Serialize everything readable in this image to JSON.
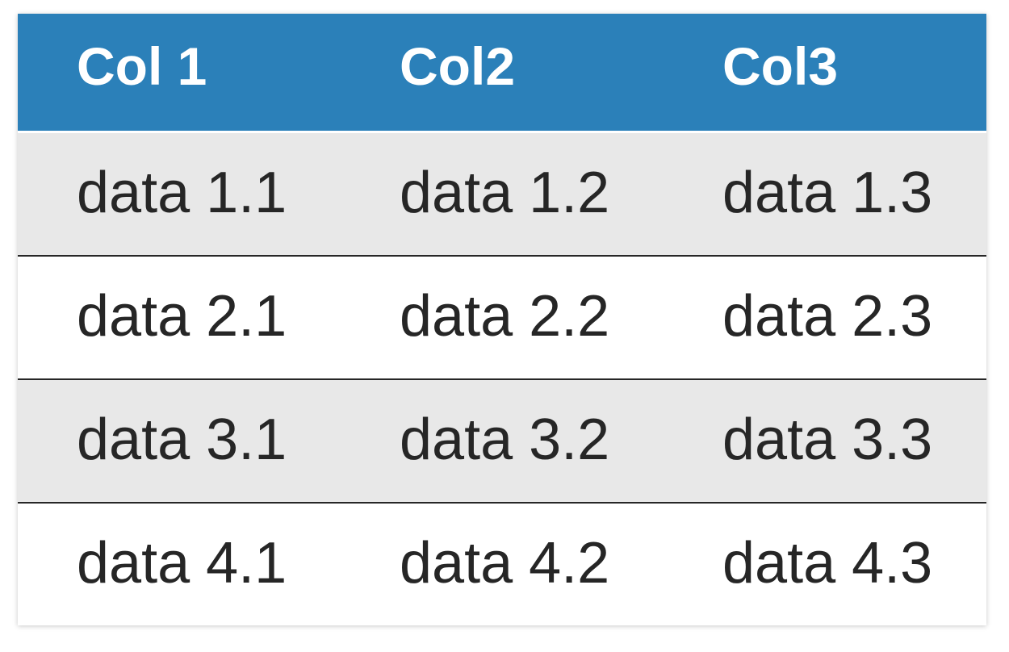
{
  "chart_data": {
    "type": "table",
    "title": "",
    "columns": [
      "Col 1",
      "Col2",
      "Col3"
    ],
    "rows": [
      [
        "data 1.1",
        "data 1.2",
        "data 1.3"
      ],
      [
        "data 2.1",
        "data 2.2",
        "data 2.3"
      ],
      [
        "data 3.1",
        "data 3.2",
        "data 3.3"
      ],
      [
        "data 4.1",
        "data 4.2",
        "data 4.3"
      ]
    ],
    "layout": {
      "striped_rows": true,
      "first_data_row_shaded": true,
      "row_separator": "dark-line"
    }
  },
  "colors": {
    "header_bg": "#2b80b9",
    "header_text": "#ffffff",
    "row_alt_bg": "#e8e8e8",
    "row_bg": "#ffffff",
    "row_border": "#262626",
    "body_text": "#262626",
    "page_bg": "#ffffff"
  }
}
